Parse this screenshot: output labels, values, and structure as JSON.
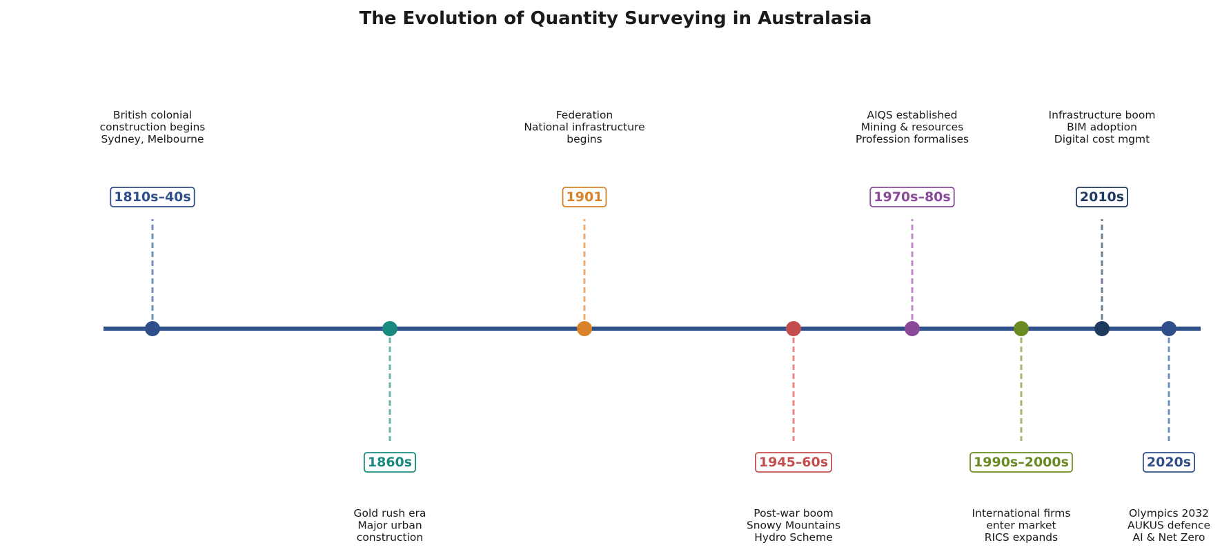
{
  "title": "The Evolution of Quantity Surveying in Australasia",
  "axis_color": "#2f4f8a",
  "events": [
    {
      "period": "1810s–40s",
      "position": "above",
      "color": "#2f4f8a",
      "stem_color": "#7090b8",
      "lines": [
        "British colonial",
        "construction begins",
        "Sydney, Melbourne"
      ]
    },
    {
      "period": "1860s",
      "position": "below",
      "color": "#1a8a7e",
      "stem_color": "#6ab5ad",
      "lines": [
        "Gold rush era",
        "Major urban",
        "construction"
      ]
    },
    {
      "period": "1901",
      "position": "above",
      "color": "#d8822a",
      "stem_color": "#eeaa6a",
      "lines": [
        "Federation",
        "National infrastructure",
        "begins"
      ]
    },
    {
      "period": "1945–60s",
      "position": "below",
      "color": "#c44e4e",
      "stem_color": "#e88888",
      "lines": [
        "Post-war boom",
        "Snowy Mountains",
        "Hydro Scheme"
      ]
    },
    {
      "period": "1970s–80s",
      "position": "above",
      "color": "#8a4a9a",
      "stem_color": "#c08acc",
      "lines": [
        "AIQS established",
        "Mining & resources",
        "Profession formalises"
      ]
    },
    {
      "period": "1990s–2000s",
      "position": "below",
      "color": "#6a8a22",
      "stem_color": "#a0b870",
      "lines": [
        "International firms",
        "enter market",
        "RICS expands"
      ]
    },
    {
      "period": "2010s",
      "position": "above",
      "color": "#1f3a5f",
      "stem_color": "#6e8098",
      "lines": [
        "Infrastructure boom",
        "BIM adoption",
        "Digital cost mgmt"
      ]
    },
    {
      "period": "2020s",
      "position": "below",
      "color": "#2f4f8a",
      "stem_color": "#7090b8",
      "lines": [
        "Olympics 2032",
        "AUKUS defence",
        "AI & Net Zero"
      ]
    }
  ]
}
